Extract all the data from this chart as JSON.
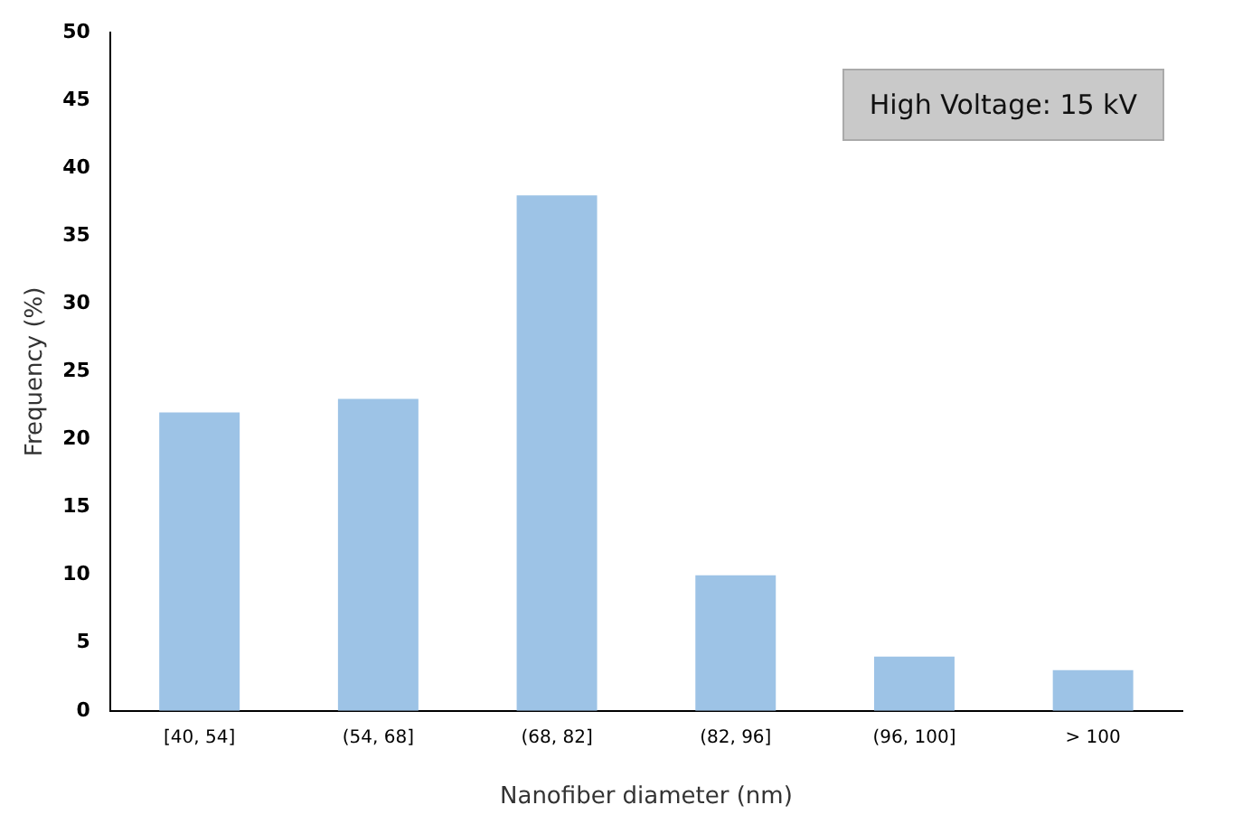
{
  "chart_data": {
    "type": "bar",
    "categories": [
      "[40, 54]",
      "(54, 68]",
      "(68, 82]",
      "(82, 96]",
      "(96, 100]",
      "> 100"
    ],
    "values": [
      22,
      23,
      38,
      10,
      4,
      3
    ],
    "color": "#9dc3e6",
    "xlabel": "Nanofiber diameter (nm)",
    "ylabel": "Frequency (%)",
    "ylim": [
      0,
      50
    ],
    "yticks": [
      0,
      5,
      10,
      15,
      20,
      25,
      30,
      35,
      40,
      45,
      50
    ],
    "grid": false,
    "legend": false,
    "annotations": [
      "High Voltage: 15 kV"
    ]
  }
}
